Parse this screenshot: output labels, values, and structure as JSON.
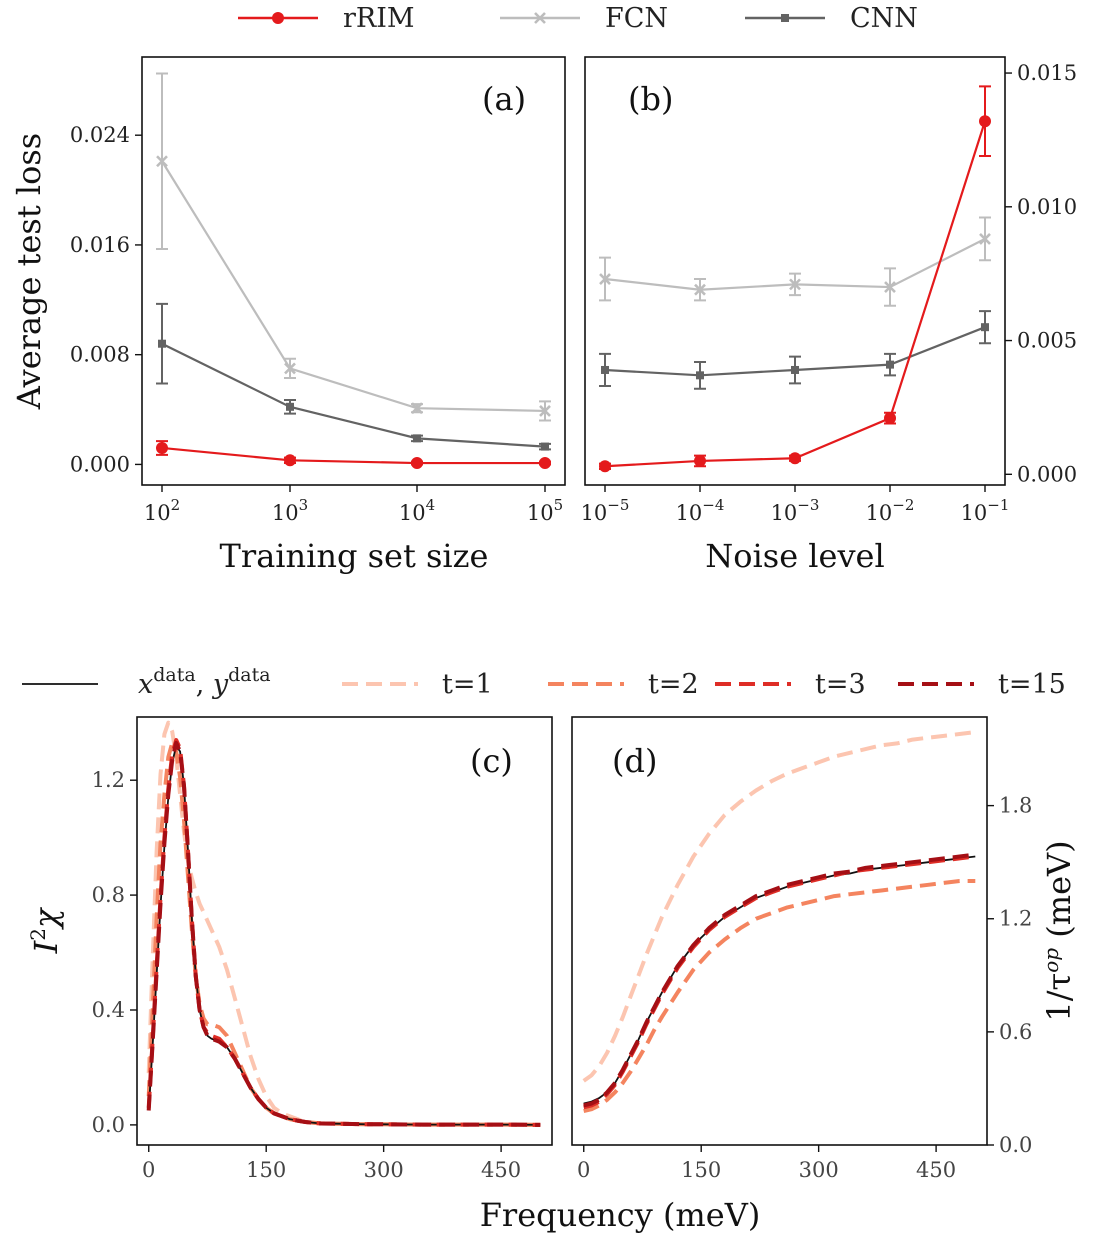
{
  "chart_data": [
    {
      "id": "a",
      "type": "line",
      "panel_label": "(a)",
      "title": "",
      "xlabel": "Training set size",
      "ylabel": "Average test loss",
      "x": [
        100,
        1000,
        10000,
        100000
      ],
      "xscale": "log",
      "xtick_labels": [
        {
          "base": "10",
          "exp": "2"
        },
        {
          "base": "10",
          "exp": "3"
        },
        {
          "base": "10",
          "exp": "4"
        },
        {
          "base": "10",
          "exp": "5"
        }
      ],
      "ylim": [
        -0.0015,
        0.0297
      ],
      "yticks": [
        0.0,
        0.008,
        0.016,
        0.024
      ],
      "ytick_labels": [
        "0.000",
        "0.008",
        "0.016",
        "0.024"
      ],
      "grid": false,
      "series": [
        {
          "name": "rRIM",
          "color": "#e41a1c",
          "marker": "circle",
          "values": [
            0.0012,
            0.0003,
            0.0001,
            0.0001
          ],
          "errors": [
            0.0005,
            0.0002,
            0.0001,
            0.0001
          ]
        },
        {
          "name": "FCN",
          "color": "#bdbdbd",
          "marker": "x",
          "values": [
            0.0221,
            0.007,
            0.0041,
            0.0039
          ],
          "errors": [
            0.0064,
            0.0007,
            0.0003,
            0.0007
          ]
        },
        {
          "name": "CNN",
          "color": "#636363",
          "marker": "square",
          "values": [
            0.0088,
            0.0042,
            0.0019,
            0.0013
          ],
          "errors": [
            0.0029,
            0.0005,
            0.0002,
            0.0002
          ]
        }
      ]
    },
    {
      "id": "b",
      "type": "line",
      "panel_label": "(b)",
      "title": "",
      "xlabel": "Noise level",
      "ylabel": "",
      "x": [
        1e-05,
        0.0001,
        0.001,
        0.01,
        0.1
      ],
      "xscale": "log",
      "xtick_labels": [
        {
          "base": "10",
          "exp": "−5"
        },
        {
          "base": "10",
          "exp": "−4"
        },
        {
          "base": "10",
          "exp": "−3"
        },
        {
          "base": "10",
          "exp": "−2"
        },
        {
          "base": "10",
          "exp": "−1"
        }
      ],
      "ylim": [
        -0.0004,
        0.0156
      ],
      "yticks": [
        0.0,
        0.005,
        0.01,
        0.015
      ],
      "ytick_labels": [
        "0.000",
        "0.005",
        "0.010",
        "0.015"
      ],
      "yaxis_side": "right",
      "grid": false,
      "series": [
        {
          "name": "rRIM",
          "color": "#e41a1c",
          "marker": "circle",
          "values": [
            0.0003,
            0.0005,
            0.0006,
            0.0021,
            0.0132
          ],
          "errors": [
            0.0001,
            0.0002,
            0.0001,
            0.0002,
            0.0013
          ]
        },
        {
          "name": "FCN",
          "color": "#bdbdbd",
          "marker": "x",
          "values": [
            0.0073,
            0.0069,
            0.0071,
            0.007,
            0.0088
          ],
          "errors": [
            0.0008,
            0.0004,
            0.0004,
            0.0007,
            0.0008
          ]
        },
        {
          "name": "CNN",
          "color": "#636363",
          "marker": "square",
          "values": [
            0.0039,
            0.0037,
            0.0039,
            0.0041,
            0.0055
          ],
          "errors": [
            0.0006,
            0.0005,
            0.0005,
            0.0004,
            0.0006
          ]
        }
      ]
    },
    {
      "id": "c",
      "type": "line",
      "panel_label": "(c)",
      "title": "",
      "xlabel": "Frequency (meV)",
      "ylabel": "I²χ",
      "xlim": [
        -15,
        515
      ],
      "ylim": [
        -0.07,
        1.42
      ],
      "xticks": [
        0,
        150,
        300,
        450
      ],
      "xtick_labels": [
        "0",
        "150",
        "300",
        "450"
      ],
      "yticks": [
        0.0,
        0.4,
        0.8,
        1.2
      ],
      "ytick_labels": [
        "0.0",
        "0.4",
        "0.8",
        "1.2"
      ],
      "grid": false,
      "x": [
        0,
        5,
        10,
        15,
        20,
        25,
        30,
        35,
        40,
        45,
        50,
        55,
        60,
        65,
        70,
        75,
        80,
        90,
        100,
        110,
        120,
        130,
        140,
        150,
        160,
        170,
        180,
        190,
        200,
        220,
        240,
        260,
        280,
        300,
        350,
        400,
        450,
        500
      ],
      "series": [
        {
          "name": "x^data, y^data",
          "color": "#111111",
          "dash": "solid",
          "values": [
            0.05,
            0.28,
            0.52,
            0.76,
            0.97,
            1.14,
            1.26,
            1.32,
            1.3,
            1.18,
            0.96,
            0.72,
            0.52,
            0.4,
            0.34,
            0.31,
            0.3,
            0.29,
            0.27,
            0.23,
            0.18,
            0.13,
            0.09,
            0.06,
            0.04,
            0.03,
            0.02,
            0.015,
            0.01,
            0.005,
            0.004,
            0.003,
            0.002,
            0.002,
            0.001,
            0.001,
            0.001,
            0.0
          ]
        },
        {
          "name": "t=1",
          "color": "#fcc5b0",
          "dash": "dashed",
          "values": [
            0.18,
            0.58,
            0.95,
            1.22,
            1.36,
            1.4,
            1.37,
            1.28,
            1.15,
            1.02,
            0.92,
            0.86,
            0.81,
            0.77,
            0.74,
            0.71,
            0.68,
            0.62,
            0.54,
            0.44,
            0.34,
            0.24,
            0.16,
            0.1,
            0.06,
            0.04,
            0.03,
            0.02,
            0.01,
            0.006,
            0.004,
            0.003,
            0.002,
            0.002,
            0.001,
            0.001,
            0.001,
            0.0
          ]
        },
        {
          "name": "t=2",
          "color": "#f4845f",
          "dash": "dashed",
          "values": [
            0.1,
            0.4,
            0.72,
            0.98,
            1.15,
            1.28,
            1.33,
            1.3,
            1.21,
            1.06,
            0.87,
            0.68,
            0.52,
            0.42,
            0.37,
            0.35,
            0.35,
            0.34,
            0.31,
            0.25,
            0.19,
            0.13,
            0.09,
            0.06,
            0.04,
            0.03,
            0.02,
            0.015,
            0.01,
            0.005,
            0.004,
            0.003,
            0.002,
            0.002,
            0.001,
            0.001,
            0.001,
            0.0
          ]
        },
        {
          "name": "t=3",
          "color": "#de2d26",
          "dash": "dashed",
          "values": [
            0.06,
            0.3,
            0.55,
            0.79,
            1.0,
            1.17,
            1.29,
            1.34,
            1.31,
            1.18,
            0.96,
            0.72,
            0.52,
            0.4,
            0.34,
            0.32,
            0.31,
            0.3,
            0.27,
            0.23,
            0.18,
            0.13,
            0.09,
            0.06,
            0.04,
            0.03,
            0.02,
            0.015,
            0.01,
            0.005,
            0.004,
            0.003,
            0.002,
            0.002,
            0.001,
            0.001,
            0.001,
            0.0
          ]
        },
        {
          "name": "t=15",
          "color": "#a50f15",
          "dash": "dashed",
          "values": [
            0.05,
            0.29,
            0.53,
            0.77,
            0.98,
            1.15,
            1.27,
            1.33,
            1.3,
            1.18,
            0.96,
            0.72,
            0.52,
            0.4,
            0.34,
            0.31,
            0.3,
            0.29,
            0.27,
            0.23,
            0.18,
            0.13,
            0.09,
            0.06,
            0.04,
            0.03,
            0.02,
            0.015,
            0.01,
            0.005,
            0.004,
            0.003,
            0.002,
            0.002,
            0.001,
            0.001,
            0.001,
            0.0
          ]
        }
      ]
    },
    {
      "id": "d",
      "type": "line",
      "panel_label": "(d)",
      "title": "",
      "xlabel": "",
      "ylabel": "1/τ^op (meV)",
      "yaxis_side": "right",
      "xlim": [
        -15,
        515
      ],
      "ylim": [
        0.0,
        2.27
      ],
      "xticks": [
        0,
        150,
        300,
        450
      ],
      "xtick_labels": [
        "0",
        "150",
        "300",
        "450"
      ],
      "yticks": [
        0.0,
        0.6,
        1.2,
        1.8
      ],
      "ytick_labels": [
        "0.0",
        "0.6",
        "1.2",
        "1.8"
      ],
      "grid": false,
      "x": [
        0,
        10,
        20,
        30,
        40,
        50,
        60,
        70,
        80,
        90,
        100,
        120,
        140,
        160,
        180,
        200,
        220,
        240,
        260,
        280,
        300,
        320,
        340,
        360,
        380,
        400,
        420,
        440,
        460,
        480,
        500
      ],
      "series": [
        {
          "name": "x^data, y^data",
          "color": "#111111",
          "dash": "solid",
          "values": [
            0.22,
            0.23,
            0.25,
            0.28,
            0.33,
            0.4,
            0.48,
            0.56,
            0.65,
            0.73,
            0.81,
            0.95,
            1.06,
            1.14,
            1.21,
            1.26,
            1.31,
            1.34,
            1.37,
            1.39,
            1.41,
            1.43,
            1.44,
            1.46,
            1.47,
            1.48,
            1.49,
            1.5,
            1.51,
            1.52,
            1.53
          ]
        },
        {
          "name": "t=1",
          "color": "#fcc5b0",
          "dash": "dashed",
          "values": [
            0.34,
            0.37,
            0.42,
            0.49,
            0.58,
            0.68,
            0.79,
            0.9,
            1.01,
            1.11,
            1.21,
            1.38,
            1.53,
            1.65,
            1.75,
            1.82,
            1.88,
            1.93,
            1.97,
            2.0,
            2.03,
            2.06,
            2.08,
            2.1,
            2.12,
            2.13,
            2.15,
            2.16,
            2.17,
            2.18,
            2.19
          ]
        },
        {
          "name": "t=2",
          "color": "#f4845f",
          "dash": "dashed",
          "values": [
            0.18,
            0.19,
            0.21,
            0.24,
            0.28,
            0.33,
            0.39,
            0.46,
            0.53,
            0.61,
            0.68,
            0.81,
            0.93,
            1.02,
            1.09,
            1.15,
            1.2,
            1.23,
            1.26,
            1.28,
            1.3,
            1.32,
            1.33,
            1.34,
            1.35,
            1.36,
            1.37,
            1.38,
            1.39,
            1.4,
            1.4
          ]
        },
        {
          "name": "t=3",
          "color": "#de2d26",
          "dash": "dashed",
          "values": [
            0.2,
            0.21,
            0.23,
            0.27,
            0.32,
            0.39,
            0.47,
            0.55,
            0.64,
            0.72,
            0.8,
            0.94,
            1.05,
            1.14,
            1.21,
            1.26,
            1.31,
            1.34,
            1.37,
            1.39,
            1.41,
            1.43,
            1.45,
            1.46,
            1.47,
            1.48,
            1.49,
            1.5,
            1.51,
            1.52,
            1.53
          ]
        },
        {
          "name": "t=15",
          "color": "#a50f15",
          "dash": "dashed",
          "values": [
            0.21,
            0.22,
            0.24,
            0.28,
            0.33,
            0.4,
            0.48,
            0.56,
            0.65,
            0.73,
            0.81,
            0.95,
            1.06,
            1.15,
            1.22,
            1.27,
            1.32,
            1.35,
            1.38,
            1.4,
            1.42,
            1.44,
            1.45,
            1.47,
            1.48,
            1.49,
            1.5,
            1.51,
            1.52,
            1.53,
            1.54
          ]
        }
      ]
    }
  ],
  "legend_top": {
    "placement": "top-center",
    "entries": [
      {
        "label": "rRIM",
        "color": "#e41a1c",
        "marker": "circle"
      },
      {
        "label": "FCN",
        "color": "#bdbdbd",
        "marker": "x"
      },
      {
        "label": "CNN",
        "color": "#636363",
        "marker": "square"
      }
    ]
  },
  "legend_bottom": {
    "placement": "between-rows",
    "entries": [
      {
        "label_main1": "x",
        "label_sup1": "data",
        "label_sep": ", ",
        "label_main2": "y",
        "label_sup2": "data",
        "color": "#111111",
        "dash": "solid"
      },
      {
        "label": "t=1",
        "color": "#fcc5b0",
        "dash": "dashed"
      },
      {
        "label": "t=2",
        "color": "#f4845f",
        "dash": "dashed"
      },
      {
        "label": "t=3",
        "color": "#de2d26",
        "dash": "dashed"
      },
      {
        "label": "t=15",
        "color": "#a50f15",
        "dash": "dashed"
      }
    ]
  },
  "shared_xlabel_cd": "Frequency (meV)",
  "ylabel_c": {
    "main": "I",
    "sup": "2",
    "after": "χ"
  },
  "ylabel_d": {
    "pre": "1/τ",
    "sup": "op",
    "after": " (meV)"
  }
}
